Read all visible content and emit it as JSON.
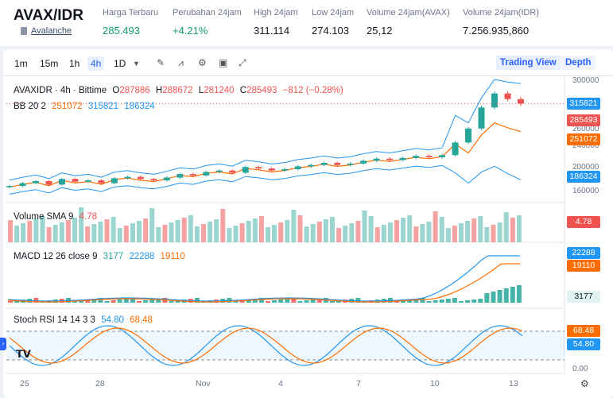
{
  "header": {
    "title": "AVAX/IDR",
    "subtitle": "Avalanche",
    "stats": [
      {
        "label": "Harga Terbaru",
        "value": "285.493",
        "style": "green"
      },
      {
        "label": "Perubahan 24jam",
        "value": "+4.21%",
        "style": "green"
      },
      {
        "label": "High 24jam",
        "value": "311.114",
        "style": "normal"
      },
      {
        "label": "Low 24jam",
        "value": "274.103",
        "style": "normal"
      },
      {
        "label": "Volume 24jam(AVAX)",
        "value": "25,12",
        "style": "normal"
      },
      {
        "label": "Volume 24jam(IDR)",
        "value": "7.256.935,860",
        "style": "normal"
      }
    ]
  },
  "toolbar": {
    "timeframes": [
      "1m",
      "15m",
      "1h",
      "4h",
      "1D"
    ],
    "active_timeframe": "4h",
    "tools": [
      "draw-icon",
      "indicators-icon",
      "settings-icon",
      "save-icon",
      "fullscreen-icon"
    ],
    "trading_view_label": "Trading View",
    "depth_label": "Depth"
  },
  "legend": {
    "symbol_line": "AVAXIDR · 4h · Bittime",
    "open_label": "O",
    "open": "287886",
    "high_label": "H",
    "high": "288672",
    "low_label": "L",
    "low": "281240",
    "close_label": "C",
    "close": "285493",
    "change": "−812 (−0.28%)",
    "bb_label": "BB 20 2",
    "bb_basis": "251072",
    "bb_upper": "315821",
    "bb_lower": "186324",
    "volume_label": "Volume SMA 9",
    "volume_value": "4.78",
    "macd_label": "MACD 12 26 close 9",
    "macd_hist": "3177",
    "macd_line": "22288",
    "macd_signal": "19110",
    "stoch_label": "Stoch RSI 14 14 3 3",
    "stoch_k": "54.80",
    "stoch_d": "68.48"
  },
  "price_axis": [
    "300000",
    "260000",
    "240000",
    "200000",
    "160000"
  ],
  "badges": {
    "upper": "315821",
    "close": "285493",
    "basis": "251072",
    "lower": "186324",
    "volume": "4.78",
    "macd_line": "22288",
    "macd_signal": "19110",
    "macd_hist": "3177",
    "stoch_d": "68.48",
    "stoch_k": "54.80",
    "stoch_axis_zero": "0.00"
  },
  "x_axis": [
    "25",
    "28",
    "Nov",
    "4",
    "7",
    "10",
    "13"
  ],
  "colors": {
    "up": "#26a69a",
    "down": "#ef5350",
    "bb_band": "#2196f3",
    "bb_basis": "#ff6d00",
    "macd_line": "#2196f3",
    "signal_line": "#ff6d00",
    "accent": "#2962ff"
  },
  "chart_data": {
    "type": "line",
    "symbol": "AVAXIDR",
    "interval": "4h",
    "price_ylim": [
      150000,
      320000
    ],
    "price_series": [
      {
        "name": "Close",
        "values": [
          168000,
          172000,
          175000,
          170000,
          178000,
          174000,
          176000,
          172000,
          179000,
          181000,
          178000,
          176000,
          180000,
          185000,
          183000,
          188000,
          190000,
          187000,
          195000,
          193000,
          190000,
          192000,
          196000,
          198000,
          201000,
          198000,
          200000,
          204000,
          207000,
          205000,
          208000,
          211000,
          209000,
          212000,
          230000,
          250000,
          280000,
          300000,
          292000,
          285493
        ]
      }
    ],
    "x_labels": [
      "25",
      "28",
      "Nov",
      "4",
      "7",
      "10",
      "13"
    ]
  }
}
